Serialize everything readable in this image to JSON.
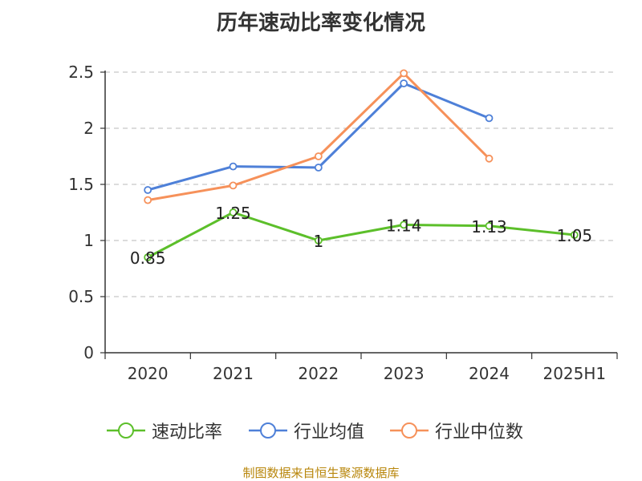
{
  "chart_data": {
    "type": "line",
    "title": "历年速动比率变化情况",
    "categories": [
      "2020",
      "2021",
      "2022",
      "2023",
      "2024",
      "2025H1"
    ],
    "ylim": [
      0,
      2.5
    ],
    "yticks": [
      "0",
      "0.5",
      "1",
      "1.5",
      "2",
      "2.5"
    ],
    "grid": true,
    "legend_position": "bottom",
    "series": [
      {
        "name": "速动比率",
        "color": "#5cbf2a",
        "values": [
          0.85,
          1.25,
          1,
          1.14,
          1.13,
          1.05
        ],
        "labels": [
          "0.85",
          "1.25",
          "1",
          "1.14",
          "1.13",
          "1.05"
        ]
      },
      {
        "name": "行业均值",
        "color": "#4e80d8",
        "values": [
          1.45,
          1.66,
          1.65,
          2.4,
          2.09,
          null
        ]
      },
      {
        "name": "行业中位数",
        "color": "#f6915a",
        "values": [
          1.36,
          1.49,
          1.75,
          2.49,
          1.73,
          null
        ]
      }
    ]
  },
  "footer": {
    "source": "制图数据来自恒生聚源数据库"
  }
}
